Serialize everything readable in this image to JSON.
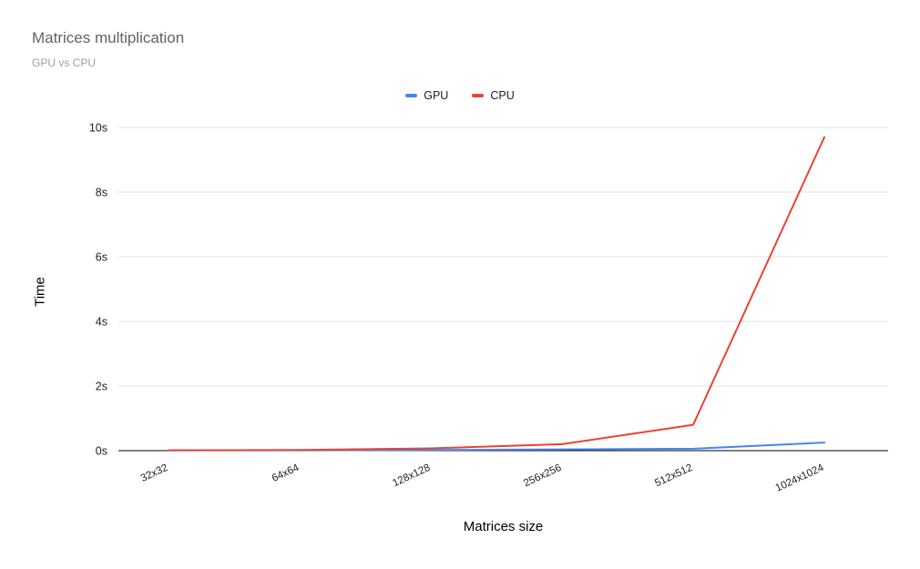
{
  "title": "Matrices multiplication",
  "subtitle": "GPU vs CPU",
  "legend": [
    {
      "label": "GPU",
      "color": "#4285f4"
    },
    {
      "label": "CPU",
      "color": "#ea4335"
    }
  ],
  "axes": {
    "y_title": "Time",
    "x_title": "Matrices size"
  },
  "chart_data": {
    "type": "line",
    "title": "Matrices multiplication",
    "subtitle": "GPU vs CPU",
    "xlabel": "Matrices size",
    "ylabel": "Time",
    "categories": [
      "32x32",
      "64x64",
      "128x128",
      "256x256",
      "512x512",
      "1024x1024"
    ],
    "series": [
      {
        "name": "GPU",
        "color": "#4285f4",
        "values": [
          0.01,
          0.01,
          0.02,
          0.04,
          0.06,
          0.25
        ]
      },
      {
        "name": "CPU",
        "color": "#ea4335",
        "values": [
          0.01,
          0.02,
          0.07,
          0.2,
          0.8,
          9.7
        ]
      }
    ],
    "ylim": [
      0,
      10
    ],
    "yticks": [
      0,
      2,
      4,
      6,
      8,
      10
    ],
    "ytick_labels": [
      "0s",
      "2s",
      "4s",
      "6s",
      "8s",
      "10s"
    ],
    "grid": true,
    "legend_position": "top",
    "grid_color": "#e3e3e3",
    "axis_color": "#000000",
    "tick_label_color": "#202124"
  }
}
